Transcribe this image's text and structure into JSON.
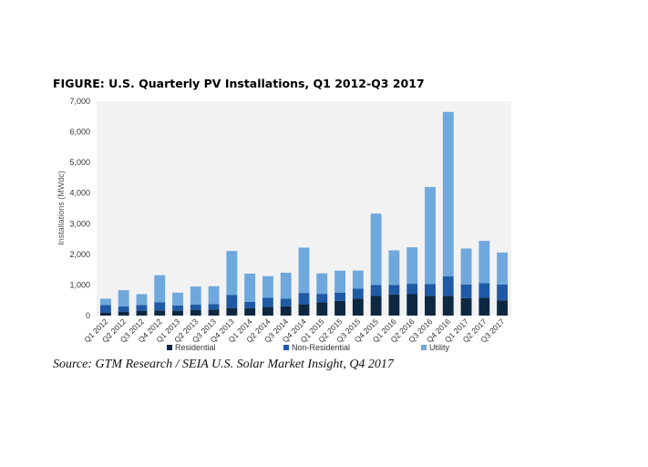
{
  "figure": {
    "title": "FIGURE: U.S. Quarterly PV Installations, Q1 2012-Q3 2017",
    "source": "Source: GTM Research / SEIA U.S. Solar Market Insight, Q4 2017"
  },
  "chart_data": {
    "type": "bar",
    "stacked": true,
    "title": "FIGURE: U.S. Quarterly PV Installations, Q1 2012-Q3 2017",
    "xlabel": "",
    "ylabel": "Installations (MWdc)",
    "ylim": [
      0,
      7000
    ],
    "yticks": [
      "0",
      "1,000",
      "2,000",
      "3,000",
      "4,000",
      "5,000",
      "6,000",
      "7,000"
    ],
    "grid": false,
    "legend_position": "bottom",
    "categories": [
      "Q1 2012",
      "Q2 2012",
      "Q3 2012",
      "Q4 2012",
      "Q1 2013",
      "Q2 2013",
      "Q3 2013",
      "Q4 2013",
      "Q1 2014",
      "Q2 2014",
      "Q3 2014",
      "Q4 2014",
      "Q1 2015",
      "Q2 2015",
      "Q3 2015",
      "Q4 2015",
      "Q1 2016",
      "Q2 2016",
      "Q3 2016",
      "Q4 2016",
      "Q1 2017",
      "Q2 2017",
      "Q3 2017"
    ],
    "series": [
      {
        "name": "Residential",
        "color": "#0e2841",
        "values": [
          100,
          130,
          150,
          170,
          160,
          180,
          200,
          250,
          240,
          280,
          300,
          370,
          430,
          480,
          560,
          640,
          690,
          700,
          650,
          650,
          570,
          580,
          500
        ]
      },
      {
        "name": "Non-Residential",
        "color": "#1f5aa6",
        "values": [
          250,
          170,
          200,
          270,
          170,
          180,
          180,
          420,
          210,
          300,
          250,
          370,
          280,
          270,
          320,
          360,
          310,
          340,
          380,
          630,
          450,
          480,
          520
        ]
      },
      {
        "name": "Utility",
        "color": "#6fa8dc",
        "values": [
          200,
          530,
          350,
          880,
          420,
          590,
          580,
          1440,
          920,
          710,
          850,
          1480,
          670,
          720,
          590,
          2330,
          1130,
          1190,
          3170,
          5370,
          1170,
          1380,
          1040
        ]
      }
    ]
  }
}
